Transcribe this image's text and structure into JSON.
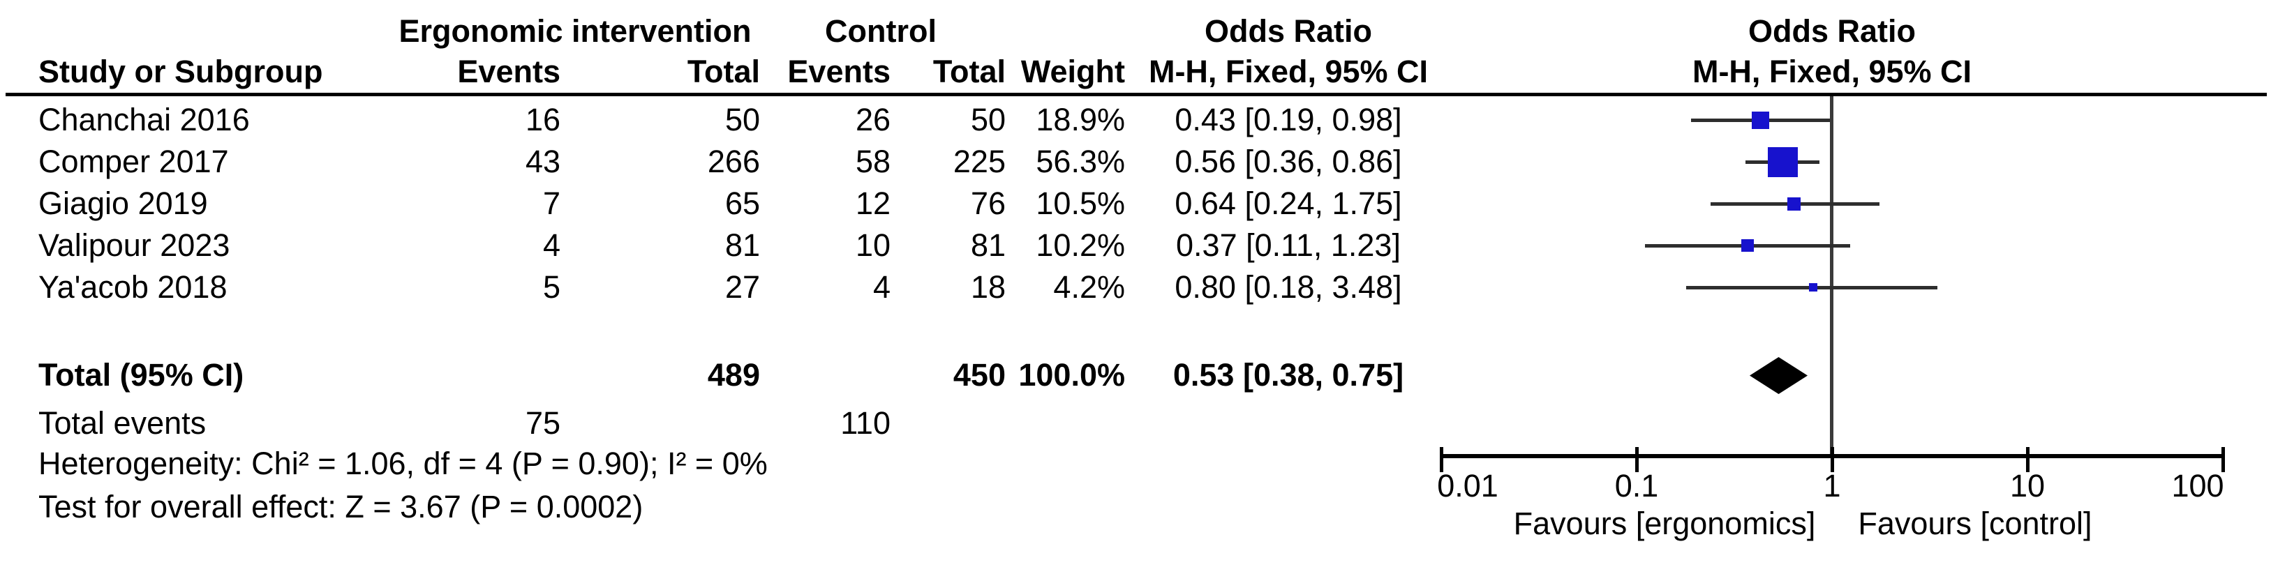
{
  "table": {
    "group_headers": {
      "intervention": "Ergonomic intervention",
      "control": "Control",
      "odds_ratio_left": "Odds Ratio",
      "odds_ratio_right": "Odds Ratio"
    },
    "col_headers": {
      "study": "Study or Subgroup",
      "int_events": "Events",
      "int_total": "Total",
      "ctrl_events": "Events",
      "ctrl_total": "Total",
      "weight": "Weight",
      "mh_left": "M-H, Fixed, 95% CI",
      "mh_right": "M-H, Fixed, 95% CI"
    }
  },
  "chart_data": {
    "type": "forest",
    "effect_measure": "Odds Ratio",
    "method": "M-H, Fixed, 95% CI",
    "x_scale": "log",
    "x_ticks": [
      0.01,
      0.1,
      1,
      10,
      100
    ],
    "x_tick_labels": [
      "0.01",
      "0.1",
      "1",
      "10",
      "100"
    ],
    "favours_left": "Favours [ergonomics]",
    "favours_right": "Favours [control]",
    "studies": [
      {
        "name": "Chanchai 2016",
        "int_events": "16",
        "int_total": "50",
        "ctrl_events": "26",
        "ctrl_total": "50",
        "weight": "18.9%",
        "weight_pct": 18.9,
        "or": 0.43,
        "ci_low": 0.19,
        "ci_high": 0.98,
        "or_label": "0.43 [0.19, 0.98]"
      },
      {
        "name": "Comper 2017",
        "int_events": "43",
        "int_total": "266",
        "ctrl_events": "58",
        "ctrl_total": "225",
        "weight": "56.3%",
        "weight_pct": 56.3,
        "or": 0.56,
        "ci_low": 0.36,
        "ci_high": 0.86,
        "or_label": "0.56 [0.36, 0.86]"
      },
      {
        "name": "Giagio 2019",
        "int_events": "7",
        "int_total": "65",
        "ctrl_events": "12",
        "ctrl_total": "76",
        "weight": "10.5%",
        "weight_pct": 10.5,
        "or": 0.64,
        "ci_low": 0.24,
        "ci_high": 1.75,
        "or_label": "0.64 [0.24, 1.75]"
      },
      {
        "name": "Valipour 2023",
        "int_events": "4",
        "int_total": "81",
        "ctrl_events": "10",
        "ctrl_total": "81",
        "weight": "10.2%",
        "weight_pct": 10.2,
        "or": 0.37,
        "ci_low": 0.11,
        "ci_high": 1.23,
        "or_label": "0.37 [0.11, 1.23]"
      },
      {
        "name": "Ya'acob 2018",
        "int_events": "5",
        "int_total": "27",
        "ctrl_events": "4",
        "ctrl_total": "18",
        "weight": "4.2%",
        "weight_pct": 4.2,
        "or": 0.8,
        "ci_low": 0.18,
        "ci_high": 3.48,
        "or_label": "0.80 [0.18, 3.48]"
      }
    ],
    "total": {
      "label": "Total (95% CI)",
      "int_total": "489",
      "ctrl_total": "450",
      "weight": "100.0%",
      "or": 0.53,
      "ci_low": 0.38,
      "ci_high": 0.75,
      "or_label": "0.53 [0.38, 0.75]"
    },
    "total_events": {
      "label": "Total events",
      "int": "75",
      "ctrl": "110"
    },
    "heterogeneity": "Heterogeneity: Chi² = 1.06, df = 4 (P = 0.90); I² = 0%",
    "overall_effect": "Test for overall effect: Z = 3.67 (P = 0.0002)",
    "colors": {
      "marker": "#1712CD",
      "summary_diamond": "#000000",
      "ci_line": "#2e2e2e",
      "null_line": "#3a3a3a",
      "axis": "#000000",
      "text": "#000000",
      "background": "#ffffff"
    }
  }
}
